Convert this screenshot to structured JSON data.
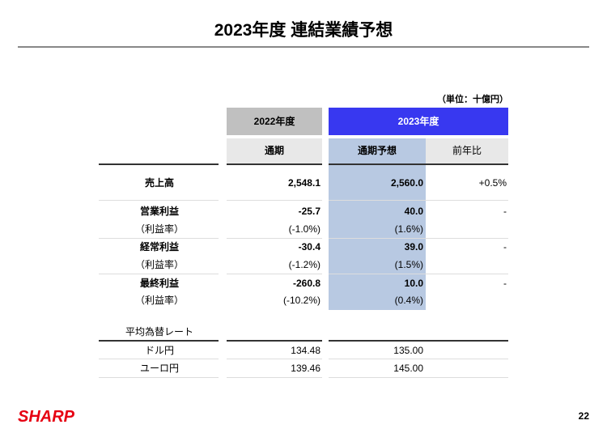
{
  "title": "2023年度 連結業績予想",
  "unit": "（単位：十億円）",
  "table": {
    "group_headers": [
      "2022年度",
      "2023年度"
    ],
    "column_headers": [
      "通期",
      "通期予想",
      "前年比"
    ],
    "rows": [
      {
        "label": "売上高",
        "fy2022": "2,548.1",
        "fy2023": "2,560.0",
        "yoy": "+0.5%"
      },
      {
        "label": "営業利益",
        "fy2022": "-25.7",
        "fy2023": "40.0",
        "yoy": "-"
      },
      {
        "label": "（利益率）",
        "fy2022": "(-1.0%)",
        "fy2023": "(1.6%)"
      },
      {
        "label": "経常利益",
        "fy2022": "-30.4",
        "fy2023": "39.0",
        "yoy": "-"
      },
      {
        "label": "（利益率）",
        "fy2022": "(-1.2%)",
        "fy2023": "(1.5%)"
      },
      {
        "label": "最終利益",
        "fy2022": "-260.8",
        "fy2023": "10.0",
        "yoy": "-"
      },
      {
        "label": "（利益率）",
        "fy2022": "(-10.2%)",
        "fy2023": "(0.4%)"
      }
    ]
  },
  "fx_section": {
    "title": "平均為替レート",
    "rows": [
      {
        "label": "ドル円",
        "fy2022": "134.48",
        "fy2023": "135.00"
      },
      {
        "label": "ユーロ円",
        "fy2022": "139.46",
        "fy2023": "145.00"
      }
    ]
  },
  "footer": {
    "logo": "SHARP",
    "page": "22"
  }
}
